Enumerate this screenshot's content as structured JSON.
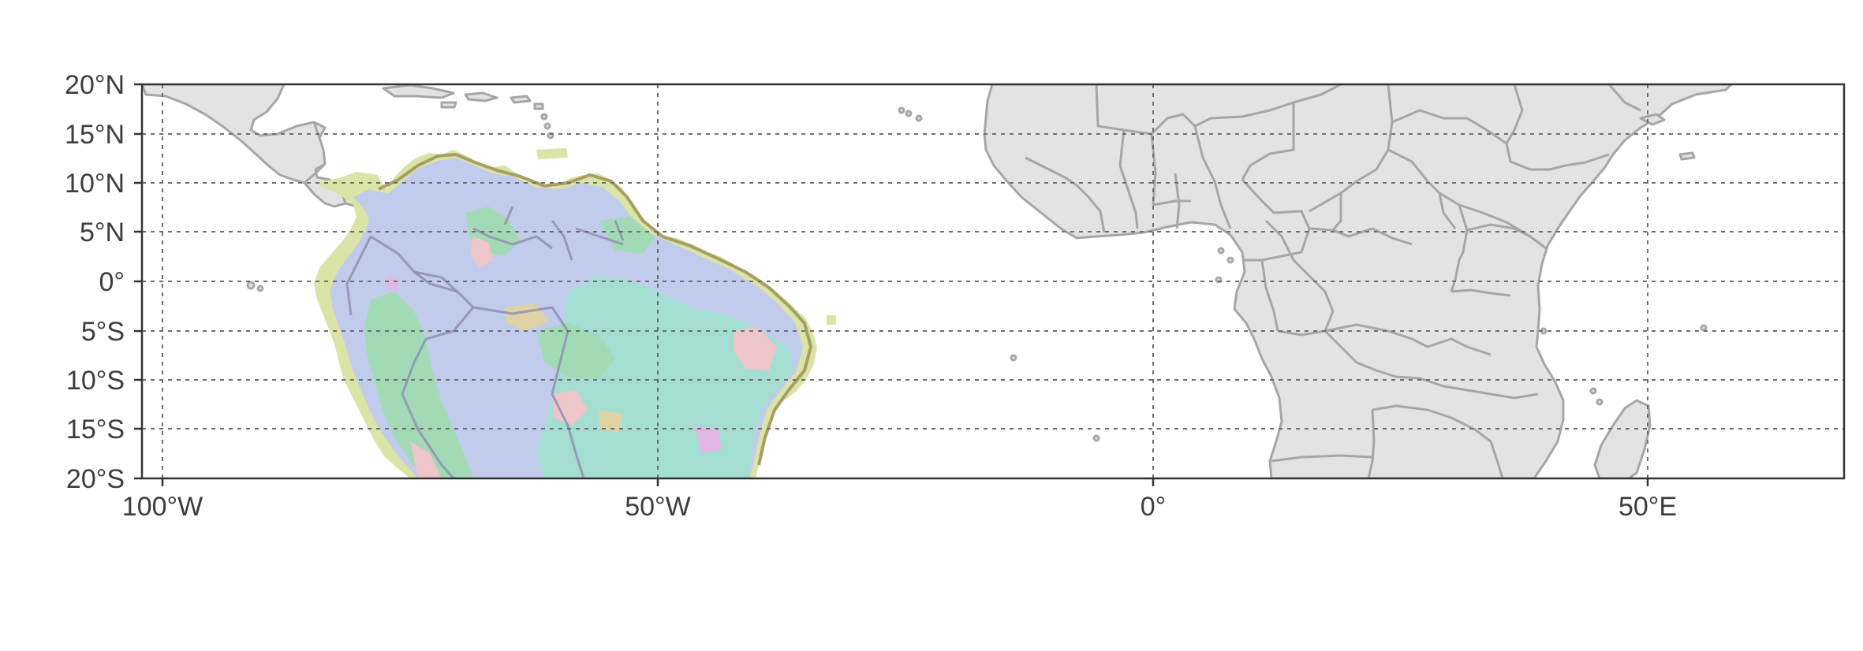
{
  "map": {
    "extent": {
      "lon": [
        -104,
        70
      ],
      "lat": [
        -20,
        20
      ]
    },
    "graticule": {
      "lon": [
        -100,
        -50,
        0,
        50
      ],
      "lat": [
        -20,
        -15,
        -10,
        -5,
        0,
        5,
        10,
        15,
        20
      ],
      "style": "dotted"
    },
    "y_ticks": [
      {
        "lat": 20,
        "label": "20°N"
      },
      {
        "lat": 15,
        "label": "15°N"
      },
      {
        "lat": 10,
        "label": "10°N"
      },
      {
        "lat": 5,
        "label": "5°N"
      },
      {
        "lat": 0,
        "label": "0°"
      },
      {
        "lat": -5,
        "label": "5°S"
      },
      {
        "lat": -10,
        "label": "10°S"
      },
      {
        "lat": -15,
        "label": "15°S"
      },
      {
        "lat": -20,
        "label": "20°S"
      }
    ],
    "x_ticks": [
      {
        "lon": -100,
        "label": "100°W"
      },
      {
        "lon": -50,
        "label": "50°W"
      },
      {
        "lon": 0,
        "label": "0°"
      },
      {
        "lon": 50,
        "label": "50°E"
      }
    ],
    "colors": {
      "land": "#e3e3e3",
      "country_border": "#a6a6a6",
      "frame": "#333333",
      "raster_lavender": "#c1cbeb",
      "raster_teal": "#a4ded3",
      "raster_green": "#a2dab5",
      "raster_pink": "#eec5c8",
      "raster_tan": "#dfd3a4",
      "raster_edge_yellow": "#d9e4a6",
      "raster_magenta": "#e3b6e6"
    }
  }
}
